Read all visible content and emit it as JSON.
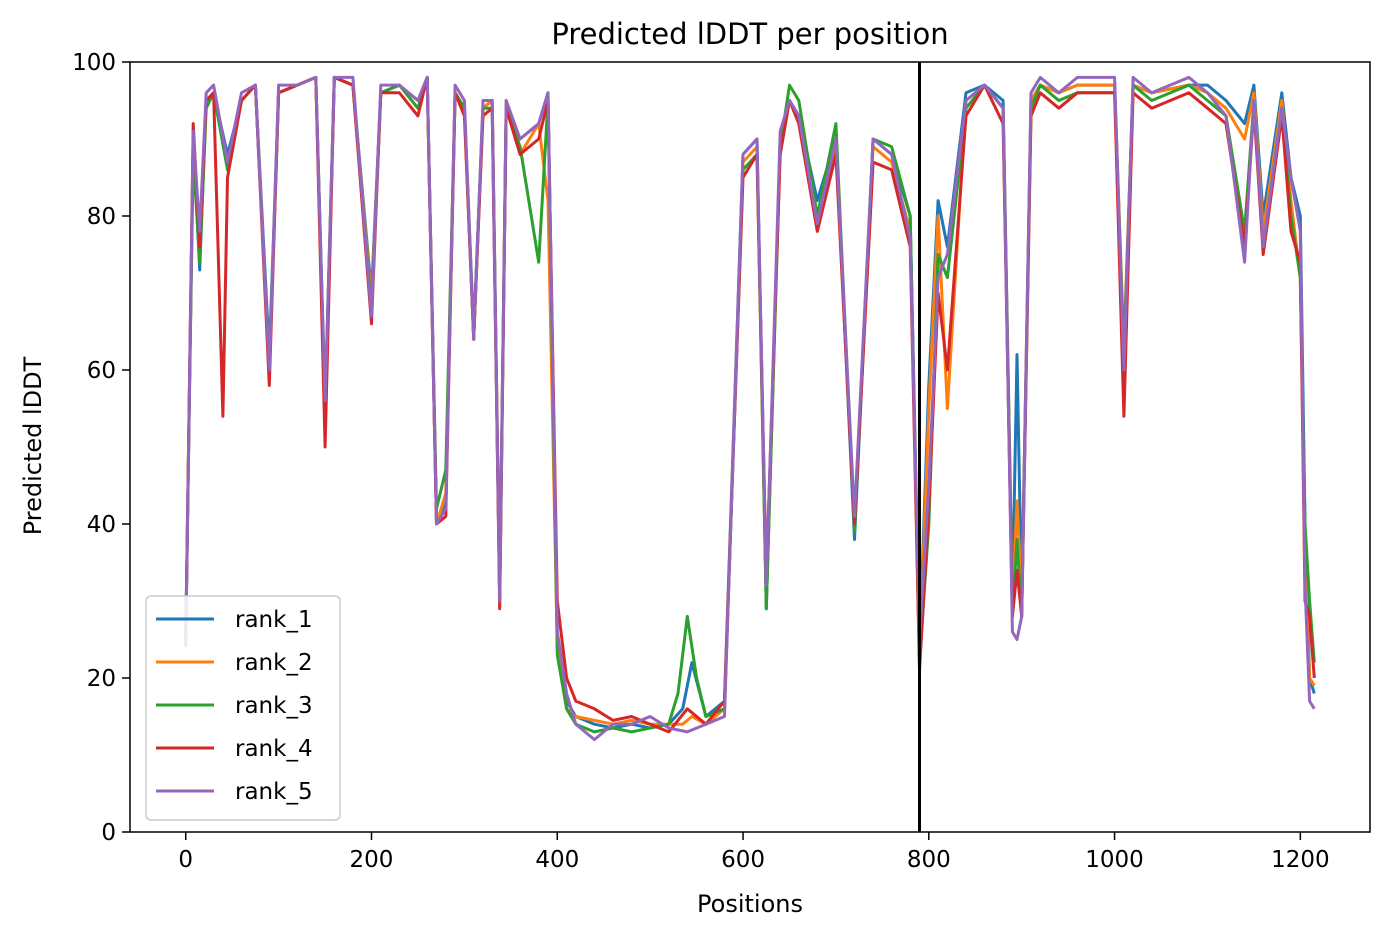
{
  "chart_data": {
    "type": "line",
    "title": "Predicted lDDT per position",
    "xlabel": "Positions",
    "ylabel": "Predicted lDDT",
    "xlim": [
      -60,
      1275
    ],
    "ylim": [
      0,
      100
    ],
    "xticks": [
      0,
      200,
      400,
      600,
      800,
      1000,
      1200
    ],
    "yticks": [
      0,
      20,
      40,
      60,
      80,
      100
    ],
    "grid": false,
    "legend_position": "lower-left",
    "vline_x": 790,
    "series": [
      {
        "name": "rank_1",
        "color": "#1f77b4",
        "x": [
          0,
          8,
          15,
          22,
          30,
          45,
          60,
          75,
          90,
          100,
          120,
          140,
          150,
          160,
          180,
          200,
          210,
          230,
          250,
          260,
          270,
          280,
          290,
          300,
          310,
          320,
          330,
          338,
          345,
          360,
          380,
          390,
          400,
          410,
          420,
          440,
          460,
          480,
          500,
          520,
          535,
          545,
          560,
          580,
          600,
          615,
          625,
          640,
          650,
          660,
          680,
          700,
          720,
          740,
          760,
          780,
          790,
          800,
          810,
          820,
          840,
          860,
          880,
          890,
          895,
          900,
          910,
          920,
          940,
          960,
          1000,
          1010,
          1020,
          1040,
          1080,
          1100,
          1120,
          1140,
          1150,
          1160,
          1180,
          1190,
          1200,
          1205,
          1210,
          1215
        ],
        "values": [
          25,
          90,
          73,
          95,
          96,
          88,
          95,
          97,
          62,
          96,
          97,
          98,
          55,
          98,
          97,
          70,
          96,
          97,
          95,
          98,
          40,
          43,
          96,
          94,
          65,
          94,
          95,
          32,
          94,
          90,
          92,
          96,
          25,
          17,
          15,
          14,
          13.5,
          14,
          13.5,
          14,
          16,
          22,
          15,
          17,
          88,
          90,
          29,
          90,
          95,
          93,
          82,
          90,
          38,
          90,
          88,
          80,
          24,
          58,
          82,
          76,
          96,
          97,
          95,
          30,
          62,
          30,
          95,
          97,
          96,
          97,
          97,
          62,
          97,
          96,
          97,
          97,
          95,
          92,
          97,
          80,
          96,
          85,
          80,
          40,
          20,
          18
        ]
      },
      {
        "name": "rank_2",
        "color": "#ff7f0e",
        "x": [
          0,
          8,
          15,
          22,
          30,
          45,
          60,
          75,
          90,
          100,
          120,
          140,
          150,
          160,
          180,
          200,
          210,
          230,
          250,
          260,
          270,
          280,
          290,
          300,
          310,
          320,
          330,
          338,
          345,
          360,
          380,
          390,
          400,
          410,
          420,
          440,
          460,
          480,
          500,
          520,
          535,
          545,
          560,
          580,
          600,
          615,
          625,
          640,
          650,
          660,
          680,
          700,
          720,
          740,
          760,
          780,
          790,
          800,
          810,
          820,
          840,
          860,
          880,
          890,
          895,
          900,
          910,
          920,
          940,
          960,
          1000,
          1010,
          1020,
          1040,
          1080,
          1100,
          1120,
          1140,
          1150,
          1160,
          1180,
          1190,
          1200,
          1205,
          1210,
          1215
        ],
        "values": [
          25,
          90,
          75,
          95,
          96,
          87,
          95,
          97,
          60,
          96,
          97,
          98,
          54,
          98,
          97,
          69,
          96,
          97,
          94,
          98,
          40,
          44,
          96,
          94,
          64,
          94,
          95,
          31,
          95,
          88,
          92,
          82,
          24,
          16,
          15,
          14.5,
          14,
          14.5,
          14,
          14,
          14,
          15,
          14,
          16,
          87,
          89,
          30,
          90,
          95,
          93,
          80,
          89,
          40,
          89,
          87,
          78,
          22,
          55,
          80,
          55,
          95,
          97,
          94,
          29,
          43,
          30,
          95,
          97,
          96,
          97,
          97,
          63,
          97,
          96,
          97,
          96,
          94,
          90,
          96,
          78,
          95,
          82,
          72,
          35,
          20,
          19
        ]
      },
      {
        "name": "rank_3",
        "color": "#2ca02c",
        "x": [
          0,
          8,
          15,
          22,
          30,
          45,
          60,
          75,
          90,
          100,
          120,
          140,
          150,
          160,
          180,
          200,
          210,
          230,
          250,
          260,
          270,
          280,
          290,
          300,
          310,
          320,
          330,
          338,
          345,
          360,
          380,
          390,
          400,
          410,
          420,
          440,
          460,
          480,
          500,
          520,
          530,
          540,
          550,
          560,
          580,
          600,
          615,
          625,
          640,
          650,
          660,
          680,
          700,
          720,
          740,
          760,
          780,
          790,
          800,
          810,
          820,
          840,
          860,
          880,
          890,
          895,
          900,
          910,
          920,
          940,
          960,
          1000,
          1010,
          1020,
          1040,
          1080,
          1100,
          1120,
          1140,
          1150,
          1160,
          1180,
          1190,
          1200,
          1205,
          1210,
          1215
        ],
        "values": [
          25,
          88,
          74,
          94,
          96,
          86,
          95,
          97,
          60,
          96,
          97,
          98,
          55,
          98,
          97,
          68,
          96,
          97,
          94,
          98,
          42,
          47,
          96,
          94,
          64,
          94,
          94,
          30,
          94,
          89,
          74,
          95,
          23,
          16,
          14,
          13,
          13.5,
          13,
          13.5,
          14,
          18,
          28,
          20,
          15,
          16,
          86,
          88,
          29,
          89,
          97,
          95,
          80,
          92,
          39,
          90,
          89,
          80,
          22,
          40,
          75,
          72,
          94,
          97,
          94,
          28,
          38,
          28,
          94,
          97,
          95,
          96,
          96,
          62,
          97,
          95,
          97,
          95,
          93,
          78,
          95,
          76,
          94,
          80,
          72,
          40,
          30,
          22
        ]
      },
      {
        "name": "rank_4",
        "color": "#d62728",
        "x": [
          0,
          8,
          15,
          22,
          30,
          40,
          45,
          60,
          75,
          90,
          100,
          120,
          140,
          150,
          160,
          180,
          200,
          210,
          230,
          250,
          260,
          270,
          280,
          290,
          300,
          310,
          320,
          330,
          338,
          345,
          360,
          380,
          390,
          400,
          410,
          420,
          440,
          460,
          480,
          500,
          520,
          540,
          560,
          580,
          600,
          615,
          625,
          640,
          650,
          660,
          680,
          700,
          720,
          740,
          760,
          780,
          790,
          800,
          810,
          820,
          840,
          860,
          880,
          890,
          895,
          900,
          910,
          920,
          940,
          960,
          1000,
          1010,
          1020,
          1040,
          1080,
          1100,
          1120,
          1140,
          1150,
          1160,
          1180,
          1190,
          1200,
          1205,
          1210,
          1215
        ],
        "values": [
          24,
          92,
          76,
          95,
          96,
          54,
          85,
          95,
          97,
          58,
          96,
          97,
          98,
          50,
          98,
          97,
          66,
          96,
          96,
          93,
          98,
          40,
          41,
          96,
          93,
          64,
          93,
          94,
          29,
          94,
          88,
          90,
          95,
          30,
          20,
          17,
          16,
          14.5,
          15,
          14,
          13,
          16,
          14,
          17,
          85,
          88,
          33,
          88,
          95,
          92,
          78,
          88,
          40,
          87,
          86,
          76,
          21,
          42,
          70,
          60,
          93,
          97,
          92,
          28,
          34,
          28,
          93,
          96,
          94,
          96,
          96,
          54,
          96,
          94,
          96,
          94,
          92,
          76,
          94,
          75,
          93,
          78,
          74,
          30,
          28,
          20
        ]
      },
      {
        "name": "rank_5",
        "color": "#9467bd",
        "x": [
          0,
          8,
          15,
          22,
          30,
          45,
          60,
          75,
          90,
          100,
          120,
          140,
          150,
          160,
          180,
          200,
          210,
          230,
          250,
          260,
          270,
          280,
          290,
          300,
          310,
          320,
          330,
          338,
          345,
          360,
          380,
          390,
          400,
          410,
          420,
          440,
          460,
          480,
          500,
          520,
          540,
          560,
          580,
          600,
          615,
          625,
          640,
          650,
          660,
          680,
          700,
          720,
          740,
          760,
          780,
          790,
          800,
          810,
          820,
          840,
          860,
          880,
          890,
          895,
          900,
          910,
          920,
          940,
          960,
          1000,
          1010,
          1020,
          1040,
          1080,
          1100,
          1120,
          1140,
          1150,
          1160,
          1180,
          1190,
          1200,
          1205,
          1210,
          1215
        ],
        "values": [
          24,
          91,
          78,
          96,
          97,
          87,
          96,
          97,
          60,
          97,
          97,
          98,
          56,
          98,
          98,
          67,
          97,
          97,
          95,
          98,
          40,
          42,
          97,
          95,
          64,
          95,
          95,
          30,
          95,
          90,
          92,
          96,
          26,
          18,
          14,
          12,
          14,
          14,
          15,
          13.5,
          13,
          14,
          15,
          88,
          90,
          32,
          91,
          95,
          93,
          79,
          90,
          41,
          90,
          88,
          77,
          25,
          45,
          72,
          75,
          95,
          97,
          94,
          26,
          25,
          28,
          96,
          98,
          96,
          98,
          98,
          60,
          98,
          96,
          98,
          96,
          93,
          74,
          95,
          76,
          94,
          85,
          78,
          32,
          17,
          16
        ]
      }
    ]
  }
}
